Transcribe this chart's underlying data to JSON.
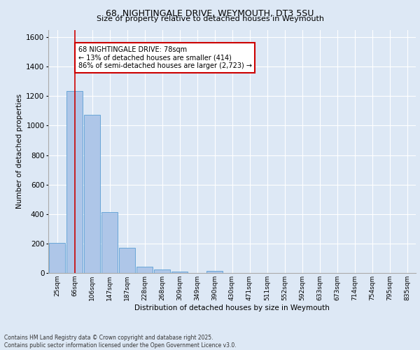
{
  "title1": "68, NIGHTINGALE DRIVE, WEYMOUTH, DT3 5SU",
  "title2": "Size of property relative to detached houses in Weymouth",
  "xlabel": "Distribution of detached houses by size in Weymouth",
  "ylabel": "Number of detached properties",
  "bin_labels": [
    "25sqm",
    "66sqm",
    "106sqm",
    "147sqm",
    "187sqm",
    "228sqm",
    "268sqm",
    "309sqm",
    "349sqm",
    "390sqm",
    "430sqm",
    "471sqm",
    "511sqm",
    "552sqm",
    "592sqm",
    "633sqm",
    "673sqm",
    "714sqm",
    "754sqm",
    "795sqm",
    "835sqm"
  ],
  "bar_heights": [
    205,
    1235,
    1075,
    415,
    170,
    45,
    25,
    10,
    0,
    12,
    0,
    0,
    0,
    0,
    0,
    0,
    0,
    0,
    0,
    0,
    0
  ],
  "bar_color": "#aec6e8",
  "bar_edge_color": "#5a9fd4",
  "vline_x": 1.0,
  "vline_color": "#cc0000",
  "annotation_text": "68 NIGHTINGALE DRIVE: 78sqm\n← 13% of detached houses are smaller (414)\n86% of semi-detached houses are larger (2,723) →",
  "annotation_box_color": "#ffffff",
  "annotation_box_edge": "#cc0000",
  "footer_text": "Contains HM Land Registry data © Crown copyright and database right 2025.\nContains public sector information licensed under the Open Government Licence v3.0.",
  "ylim": [
    0,
    1650
  ],
  "yticks": [
    0,
    200,
    400,
    600,
    800,
    1000,
    1200,
    1400,
    1600
  ],
  "bg_color": "#dde8f5",
  "plot_bg_color": "#dde8f5"
}
